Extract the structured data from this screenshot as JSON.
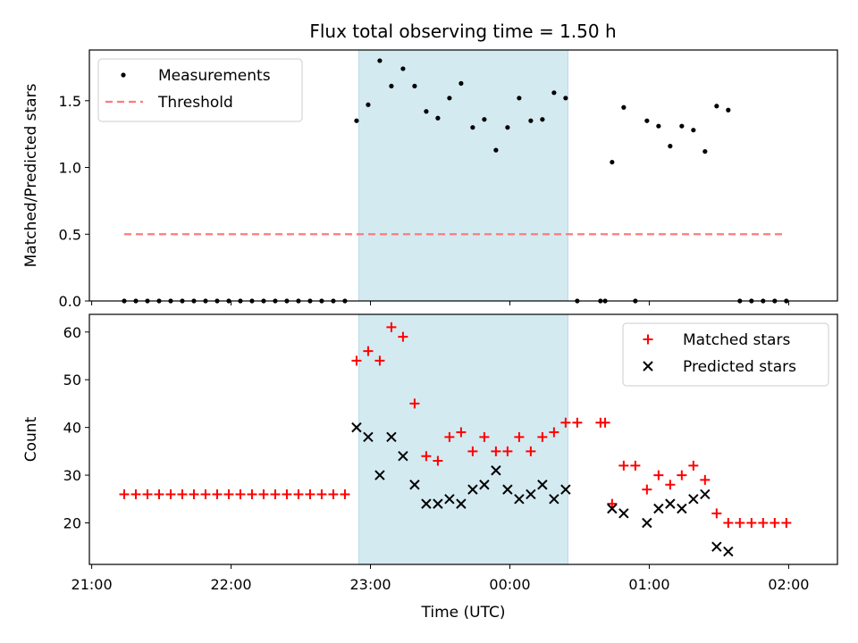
{
  "chart_data": [
    {
      "type": "scatter",
      "title": "Flux total observing time = 1.50 h",
      "xlabel": "",
      "ylabel": "Matched/Predicted stars",
      "ylim": [
        0,
        1.88
      ],
      "yticks": [
        "0.0",
        "0.5",
        "1.0",
        "1.5"
      ],
      "ytick_values": [
        0,
        0.5,
        1.0,
        1.5
      ],
      "xlim": [
        "20:59",
        "02:21"
      ],
      "highlight_span": {
        "start": "22:55",
        "end": "00:25",
        "color": "#d4eaf1"
      },
      "legend_position": "upper left",
      "series": [
        {
          "name": "Measurements",
          "color": "#000000",
          "marker": "dot",
          "points": [
            [
              "21:14",
              0
            ],
            [
              "21:19",
              0
            ],
            [
              "21:24",
              0
            ],
            [
              "21:29",
              0
            ],
            [
              "21:34",
              0
            ],
            [
              "21:39",
              0
            ],
            [
              "21:44",
              0
            ],
            [
              "21:49",
              0
            ],
            [
              "21:54",
              0
            ],
            [
              "21:59",
              0
            ],
            [
              "22:04",
              0
            ],
            [
              "22:09",
              0
            ],
            [
              "22:14",
              0
            ],
            [
              "22:19",
              0
            ],
            [
              "22:24",
              0
            ],
            [
              "22:29",
              0
            ],
            [
              "22:34",
              0
            ],
            [
              "22:39",
              0
            ],
            [
              "22:44",
              0
            ],
            [
              "22:49",
              0
            ],
            [
              "22:54",
              1.35
            ],
            [
              "22:59",
              1.47
            ],
            [
              "23:04",
              1.8
            ],
            [
              "23:09",
              1.61
            ],
            [
              "23:14",
              1.74
            ],
            [
              "23:19",
              1.61
            ],
            [
              "23:24",
              1.42
            ],
            [
              "23:29",
              1.37
            ],
            [
              "23:34",
              1.52
            ],
            [
              "23:39",
              1.63
            ],
            [
              "23:44",
              1.3
            ],
            [
              "23:49",
              1.36
            ],
            [
              "23:54",
              1.13
            ],
            [
              "23:59",
              1.3
            ],
            [
              "00:04",
              1.52
            ],
            [
              "00:09",
              1.35
            ],
            [
              "00:14",
              1.36
            ],
            [
              "00:19",
              1.56
            ],
            [
              "00:24",
              1.52
            ],
            [
              "00:29",
              0
            ],
            [
              "00:39",
              0
            ],
            [
              "00:41",
              0
            ],
            [
              "00:44",
              1.04
            ],
            [
              "00:49",
              1.45
            ],
            [
              "00:54",
              0
            ],
            [
              "00:59",
              1.35
            ],
            [
              "01:04",
              1.31
            ],
            [
              "01:09",
              1.16
            ],
            [
              "01:14",
              1.31
            ],
            [
              "01:19",
              1.28
            ],
            [
              "01:24",
              1.12
            ],
            [
              "01:29",
              1.46
            ],
            [
              "01:34",
              1.43
            ],
            [
              "01:39",
              0
            ],
            [
              "01:44",
              0
            ],
            [
              "01:49",
              0
            ],
            [
              "01:54",
              0
            ],
            [
              "01:59",
              0
            ]
          ]
        },
        {
          "name": "Threshold",
          "color": "#ff7b7b",
          "marker": "dashed-line",
          "points": [
            [
              "21:14",
              0.5
            ],
            [
              "01:59",
              0.5
            ]
          ]
        }
      ]
    },
    {
      "type": "scatter",
      "title": "",
      "xlabel": "Time (UTC)",
      "ylabel": "Count",
      "ylim": [
        11.3,
        63.7
      ],
      "yticks": [
        "20",
        "30",
        "40",
        "50",
        "60"
      ],
      "ytick_values": [
        20,
        30,
        40,
        50,
        60
      ],
      "xlim": [
        "20:59",
        "02:21"
      ],
      "xticks": [
        "21:00",
        "22:00",
        "23:00",
        "00:00",
        "01:00",
        "02:00"
      ],
      "highlight_span": {
        "start": "22:55",
        "end": "00:25",
        "color": "#d4eaf1"
      },
      "legend_position": "upper right",
      "series": [
        {
          "name": "Matched stars",
          "color": "#ff0000",
          "marker": "plus",
          "points": [
            [
              "21:14",
              26
            ],
            [
              "21:19",
              26
            ],
            [
              "21:24",
              26
            ],
            [
              "21:29",
              26
            ],
            [
              "21:34",
              26
            ],
            [
              "21:39",
              26
            ],
            [
              "21:44",
              26
            ],
            [
              "21:49",
              26
            ],
            [
              "21:54",
              26
            ],
            [
              "21:59",
              26
            ],
            [
              "22:04",
              26
            ],
            [
              "22:09",
              26
            ],
            [
              "22:14",
              26
            ],
            [
              "22:19",
              26
            ],
            [
              "22:24",
              26
            ],
            [
              "22:29",
              26
            ],
            [
              "22:34",
              26
            ],
            [
              "22:39",
              26
            ],
            [
              "22:44",
              26
            ],
            [
              "22:49",
              26
            ],
            [
              "22:54",
              54
            ],
            [
              "22:59",
              56
            ],
            [
              "23:04",
              54
            ],
            [
              "23:09",
              61
            ],
            [
              "23:14",
              59
            ],
            [
              "23:19",
              45
            ],
            [
              "23:24",
              34
            ],
            [
              "23:29",
              33
            ],
            [
              "23:34",
              38
            ],
            [
              "23:39",
              39
            ],
            [
              "23:44",
              35
            ],
            [
              "23:49",
              38
            ],
            [
              "23:54",
              35
            ],
            [
              "23:59",
              35
            ],
            [
              "00:04",
              38
            ],
            [
              "00:09",
              35
            ],
            [
              "00:14",
              38
            ],
            [
              "00:19",
              39
            ],
            [
              "00:24",
              41
            ],
            [
              "00:29",
              41
            ],
            [
              "00:39",
              41
            ],
            [
              "00:41",
              41
            ],
            [
              "00:44",
              24
            ],
            [
              "00:49",
              32
            ],
            [
              "00:54",
              32
            ],
            [
              "00:59",
              27
            ],
            [
              "01:04",
              30
            ],
            [
              "01:09",
              28
            ],
            [
              "01:14",
              30
            ],
            [
              "01:19",
              32
            ],
            [
              "01:24",
              29
            ],
            [
              "01:29",
              22
            ],
            [
              "01:34",
              20
            ],
            [
              "01:39",
              20
            ],
            [
              "01:44",
              20
            ],
            [
              "01:49",
              20
            ],
            [
              "01:54",
              20
            ],
            [
              "01:59",
              20
            ]
          ]
        },
        {
          "name": "Predicted stars",
          "color": "#000000",
          "marker": "x",
          "points": [
            [
              "22:54",
              40
            ],
            [
              "22:59",
              38
            ],
            [
              "23:04",
              30
            ],
            [
              "23:09",
              38
            ],
            [
              "23:14",
              34
            ],
            [
              "23:19",
              28
            ],
            [
              "23:24",
              24
            ],
            [
              "23:29",
              24
            ],
            [
              "23:34",
              25
            ],
            [
              "23:39",
              24
            ],
            [
              "23:44",
              27
            ],
            [
              "23:49",
              28
            ],
            [
              "23:54",
              31
            ],
            [
              "23:59",
              27
            ],
            [
              "00:04",
              25
            ],
            [
              "00:09",
              26
            ],
            [
              "00:14",
              28
            ],
            [
              "00:19",
              25
            ],
            [
              "00:24",
              27
            ],
            [
              "00:44",
              23
            ],
            [
              "00:49",
              22
            ],
            [
              "00:59",
              20
            ],
            [
              "01:04",
              23
            ],
            [
              "01:09",
              24
            ],
            [
              "01:14",
              23
            ],
            [
              "01:19",
              25
            ],
            [
              "01:24",
              26
            ],
            [
              "01:29",
              15
            ],
            [
              "01:34",
              14
            ]
          ]
        }
      ]
    }
  ]
}
